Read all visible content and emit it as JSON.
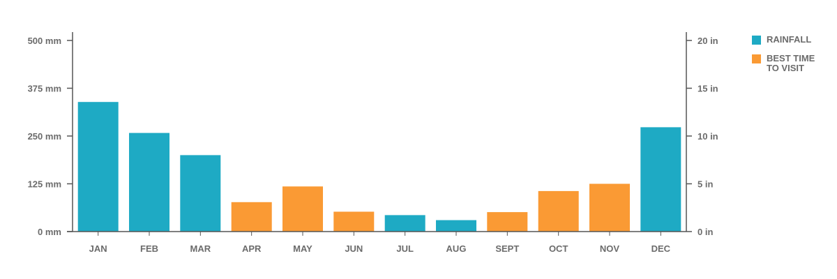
{
  "chart_data": {
    "type": "bar",
    "categories": [
      "JAN",
      "FEB",
      "MAR",
      "APR",
      "MAY",
      "JUN",
      "JUL",
      "AUG",
      "SEPT",
      "OCT",
      "NOV",
      "DEC"
    ],
    "values": [
      339,
      258,
      200,
      77,
      118,
      52,
      43,
      30,
      51,
      106,
      125,
      273
    ],
    "highlight": [
      false,
      false,
      false,
      true,
      true,
      true,
      false,
      false,
      true,
      true,
      true,
      false
    ],
    "ylim": [
      0,
      500
    ],
    "y_ticks": [
      {
        "value": 0,
        "label": "0 mm"
      },
      {
        "value": 125,
        "label": "125 mm"
      },
      {
        "value": 250,
        "label": "250 mm"
      },
      {
        "value": 375,
        "label": "375 mm"
      },
      {
        "value": 500,
        "label": "500 mm"
      }
    ],
    "y2_ticks": [
      {
        "value": 0,
        "label": "0 in"
      },
      {
        "value": 5,
        "label": "5 in"
      },
      {
        "value": 10,
        "label": "10 in"
      },
      {
        "value": 15,
        "label": "15 in"
      },
      {
        "value": 20,
        "label": "20 in"
      }
    ],
    "y2lim": [
      0,
      20
    ],
    "colors": {
      "rainfall": "#1eaac4",
      "best": "#fa9a34",
      "axis": "#555555",
      "text": "#6b6b6b"
    },
    "legend": [
      {
        "label": "RAINFALL",
        "color": "#1eaac4"
      },
      {
        "label": "BEST TIME TO VISIT",
        "color": "#fa9a34"
      }
    ],
    "legend_position": "top-right",
    "grid": false
  }
}
